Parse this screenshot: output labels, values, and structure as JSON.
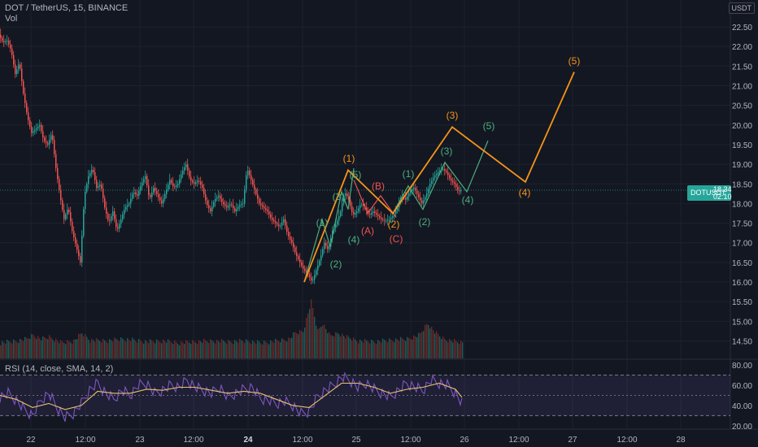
{
  "header": {
    "title": "DOT / TetherUS, 15, BINANCE",
    "vol_label": "Vol",
    "currency": "USDT"
  },
  "rsi": {
    "title": "RSI (14, close, SMA, 14, 2)",
    "levels": [
      20,
      40,
      60,
      80
    ],
    "band": [
      30,
      70
    ],
    "ticks": [
      "80.00",
      "60.00",
      "40.00",
      "20.00"
    ]
  },
  "price_badge": {
    "symbol": "DOTUSDT",
    "price": "18.34",
    "countdown": "02:10"
  },
  "colors": {
    "background": "#131722",
    "up": "#26a69a",
    "down": "#ef5350",
    "wave_major": "#f7931a",
    "wave_minor": "#4caf7f",
    "wave_correction": "#ef5350",
    "rsi_line": "#7e57c2",
    "rsi_ma": "#e8c36b"
  },
  "chart_data": {
    "type": "candlestick",
    "y_ticks": [
      "22.50",
      "22.00",
      "21.50",
      "21.00",
      "20.50",
      "20.00",
      "19.50",
      "19.00",
      "18.50",
      "18.00",
      "17.50",
      "17.00",
      "16.50",
      "16.00",
      "15.50",
      "15.00",
      "14.50"
    ],
    "ylim": [
      14.2,
      22.75
    ],
    "x_ticks": [
      "22",
      "12:00",
      "23",
      "12:00",
      "24",
      "12:00",
      "25",
      "12:00",
      "26",
      "12:00",
      "27",
      "12:00",
      "28"
    ],
    "x_ticks_bold": [
      "24"
    ],
    "current_price": 18.34,
    "price_series": [
      [
        0,
        22.3
      ],
      [
        5,
        22.1
      ],
      [
        10,
        22.15
      ],
      [
        15,
        21.9
      ],
      [
        20,
        21.3
      ],
      [
        25,
        21.6
      ],
      [
        30,
        20.8
      ],
      [
        35,
        20.2
      ],
      [
        40,
        19.8
      ],
      [
        45,
        19.9
      ],
      [
        50,
        20.0
      ],
      [
        55,
        19.6
      ],
      [
        60,
        19.5
      ],
      [
        65,
        19.8
      ],
      [
        70,
        18.9
      ],
      [
        75,
        18.2
      ],
      [
        80,
        17.6
      ],
      [
        85,
        17.9
      ],
      [
        90,
        17.3
      ],
      [
        95,
        16.9
      ],
      [
        100,
        16.5
      ],
      [
        105,
        18.2
      ],
      [
        110,
        18.7
      ],
      [
        115,
        18.9
      ],
      [
        120,
        18.4
      ],
      [
        125,
        18.5
      ],
      [
        130,
        17.9
      ],
      [
        135,
        17.5
      ],
      [
        140,
        17.8
      ],
      [
        145,
        17.3
      ],
      [
        150,
        17.6
      ],
      [
        155,
        17.9
      ],
      [
        160,
        18.0
      ],
      [
        165,
        18.3
      ],
      [
        170,
        18.2
      ],
      [
        175,
        18.5
      ],
      [
        180,
        18.7
      ],
      [
        185,
        18.1
      ],
      [
        190,
        18.4
      ],
      [
        195,
        18.2
      ],
      [
        200,
        18.0
      ],
      [
        205,
        18.3
      ],
      [
        210,
        18.6
      ],
      [
        215,
        18.4
      ],
      [
        220,
        18.5
      ],
      [
        225,
        18.8
      ],
      [
        230,
        19.0
      ],
      [
        235,
        18.6
      ],
      [
        240,
        18.5
      ],
      [
        245,
        18.6
      ],
      [
        250,
        18.4
      ],
      [
        255,
        18.0
      ],
      [
        260,
        17.8
      ],
      [
        265,
        18.1
      ],
      [
        270,
        18.2
      ],
      [
        275,
        18.0
      ],
      [
        280,
        17.9
      ],
      [
        285,
        18.0
      ],
      [
        290,
        17.8
      ],
      [
        295,
        17.95
      ],
      [
        300,
        18.0
      ],
      [
        305,
        18.9
      ],
      [
        310,
        18.6
      ],
      [
        315,
        18.3
      ],
      [
        320,
        18.0
      ],
      [
        325,
        17.9
      ],
      [
        330,
        17.8
      ],
      [
        335,
        17.6
      ],
      [
        340,
        17.5
      ],
      [
        345,
        17.4
      ],
      [
        350,
        17.6
      ],
      [
        355,
        17.2
      ],
      [
        360,
        17.0
      ],
      [
        365,
        16.7
      ],
      [
        370,
        16.5
      ],
      [
        375,
        16.3
      ],
      [
        380,
        16.2
      ],
      [
        385,
        16.0
      ],
      [
        390,
        16.3
      ],
      [
        395,
        16.6
      ],
      [
        400,
        17.0
      ],
      [
        405,
        16.8
      ],
      [
        410,
        17.3
      ],
      [
        415,
        17.5
      ],
      [
        420,
        17.8
      ],
      [
        425,
        18.3
      ],
      [
        430,
        18.1
      ],
      [
        435,
        17.7
      ],
      [
        440,
        17.8
      ],
      [
        445,
        18.0
      ],
      [
        450,
        17.9
      ],
      [
        455,
        17.7
      ],
      [
        460,
        17.8
      ],
      [
        465,
        17.7
      ],
      [
        470,
        17.6
      ],
      [
        475,
        17.55
      ],
      [
        480,
        17.6
      ],
      [
        485,
        17.7
      ],
      [
        490,
        17.9
      ],
      [
        495,
        18.2
      ],
      [
        500,
        18.1
      ],
      [
        505,
        18.3
      ],
      [
        510,
        18.4
      ],
      [
        515,
        18.2
      ],
      [
        520,
        18.0
      ],
      [
        525,
        18.2
      ],
      [
        530,
        18.5
      ],
      [
        535,
        18.7
      ],
      [
        540,
        18.8
      ],
      [
        545,
        18.9
      ],
      [
        550,
        18.8
      ],
      [
        555,
        18.6
      ],
      [
        560,
        18.5
      ],
      [
        565,
        18.3
      ],
      [
        568,
        18.34
      ]
    ],
    "volume_series": [
      [
        0,
        14.45
      ],
      [
        20,
        14.5
      ],
      [
        32,
        14.55
      ],
      [
        40,
        14.65
      ],
      [
        50,
        14.55
      ],
      [
        60,
        14.6
      ],
      [
        75,
        14.45
      ],
      [
        90,
        14.5
      ],
      [
        100,
        14.7
      ],
      [
        110,
        14.52
      ],
      [
        130,
        14.5
      ],
      [
        150,
        14.55
      ],
      [
        180,
        14.48
      ],
      [
        200,
        14.5
      ],
      [
        220,
        14.45
      ],
      [
        240,
        14.48
      ],
      [
        260,
        14.5
      ],
      [
        280,
        14.48
      ],
      [
        300,
        14.5
      ],
      [
        320,
        14.45
      ],
      [
        340,
        14.5
      ],
      [
        355,
        14.55
      ],
      [
        362,
        14.7
      ],
      [
        372,
        14.75
      ],
      [
        382,
        15.5
      ],
      [
        390,
        14.75
      ],
      [
        396,
        14.95
      ],
      [
        405,
        14.62
      ],
      [
        415,
        14.7
      ],
      [
        425,
        14.6
      ],
      [
        440,
        14.5
      ],
      [
        460,
        14.48
      ],
      [
        480,
        14.52
      ],
      [
        500,
        14.55
      ],
      [
        515,
        14.65
      ],
      [
        525,
        14.95
      ],
      [
        535,
        14.7
      ],
      [
        545,
        14.55
      ],
      [
        555,
        14.5
      ],
      [
        568,
        14.45
      ]
    ],
    "rsi_series": [
      [
        0,
        48
      ],
      [
        10,
        52
      ],
      [
        20,
        45
      ],
      [
        30,
        36
      ],
      [
        40,
        30
      ],
      [
        50,
        45
      ],
      [
        60,
        52
      ],
      [
        70,
        38
      ],
      [
        80,
        28
      ],
      [
        90,
        32
      ],
      [
        100,
        42
      ],
      [
        110,
        55
      ],
      [
        120,
        62
      ],
      [
        130,
        52
      ],
      [
        140,
        46
      ],
      [
        150,
        55
      ],
      [
        160,
        50
      ],
      [
        170,
        60
      ],
      [
        180,
        62
      ],
      [
        190,
        52
      ],
      [
        200,
        55
      ],
      [
        210,
        60
      ],
      [
        220,
        58
      ],
      [
        230,
        65
      ],
      [
        240,
        58
      ],
      [
        250,
        55
      ],
      [
        260,
        52
      ],
      [
        270,
        58
      ],
      [
        280,
        48
      ],
      [
        290,
        52
      ],
      [
        300,
        56
      ],
      [
        310,
        58
      ],
      [
        320,
        47
      ],
      [
        330,
        45
      ],
      [
        340,
        42
      ],
      [
        350,
        44
      ],
      [
        360,
        40
      ],
      [
        370,
        32
      ],
      [
        380,
        34
      ],
      [
        390,
        48
      ],
      [
        400,
        55
      ],
      [
        410,
        60
      ],
      [
        420,
        68
      ],
      [
        430,
        65
      ],
      [
        440,
        58
      ],
      [
        450,
        62
      ],
      [
        460,
        56
      ],
      [
        470,
        52
      ],
      [
        480,
        48
      ],
      [
        490,
        55
      ],
      [
        500,
        62
      ],
      [
        510,
        58
      ],
      [
        520,
        55
      ],
      [
        530,
        65
      ],
      [
        540,
        62
      ],
      [
        550,
        60
      ],
      [
        560,
        52
      ],
      [
        568,
        42
      ]
    ],
    "rsi_ma_series": [
      [
        0,
        50
      ],
      [
        20,
        46
      ],
      [
        40,
        38
      ],
      [
        60,
        42
      ],
      [
        80,
        36
      ],
      [
        100,
        40
      ],
      [
        120,
        54
      ],
      [
        140,
        52
      ],
      [
        160,
        52
      ],
      [
        180,
        56
      ],
      [
        200,
        55
      ],
      [
        220,
        58
      ],
      [
        240,
        58
      ],
      [
        260,
        55
      ],
      [
        280,
        52
      ],
      [
        300,
        54
      ],
      [
        320,
        52
      ],
      [
        340,
        46
      ],
      [
        360,
        40
      ],
      [
        380,
        38
      ],
      [
        400,
        50
      ],
      [
        420,
        62
      ],
      [
        440,
        62
      ],
      [
        460,
        58
      ],
      [
        480,
        52
      ],
      [
        500,
        56
      ],
      [
        520,
        58
      ],
      [
        540,
        62
      ],
      [
        560,
        56
      ],
      [
        568,
        48
      ]
    ],
    "waves": {
      "major": {
        "points": [
          [
            374,
            16.0
          ],
          [
            428,
            18.85
          ],
          [
            483,
            17.75
          ],
          [
            556,
            19.95
          ],
          [
            646,
            18.55
          ],
          [
            706,
            21.35
          ]
        ],
        "labels": [
          "(1)",
          "(2)",
          "(3)",
          "(4)",
          "(5)"
        ]
      },
      "minor_a": {
        "points": [
          [
            374,
            16.0
          ],
          [
            396,
            17.6
          ],
          [
            406,
            16.9
          ],
          [
            420,
            18.3
          ],
          [
            428,
            17.85
          ],
          [
            435,
            18.9
          ]
        ],
        "labels": [
          "(1)",
          "(2)",
          "(3)",
          "(4)",
          "(5)"
        ]
      },
      "correction": {
        "points": [
          [
            435,
            18.6
          ],
          [
            452,
            17.75
          ],
          [
            468,
            18.2
          ],
          [
            487,
            17.65
          ]
        ],
        "labels": [
          "(A)",
          "(B)",
          "(C)"
        ]
      },
      "minor_b": {
        "points": [
          [
            483,
            17.75
          ],
          [
            502,
            18.45
          ],
          [
            520,
            17.85
          ],
          [
            547,
            19.05
          ],
          [
            574,
            18.3
          ],
          [
            600,
            19.6
          ]
        ],
        "labels": [
          "(1)",
          "(2)",
          "(3)",
          "(4)",
          "(5)"
        ]
      }
    }
  }
}
